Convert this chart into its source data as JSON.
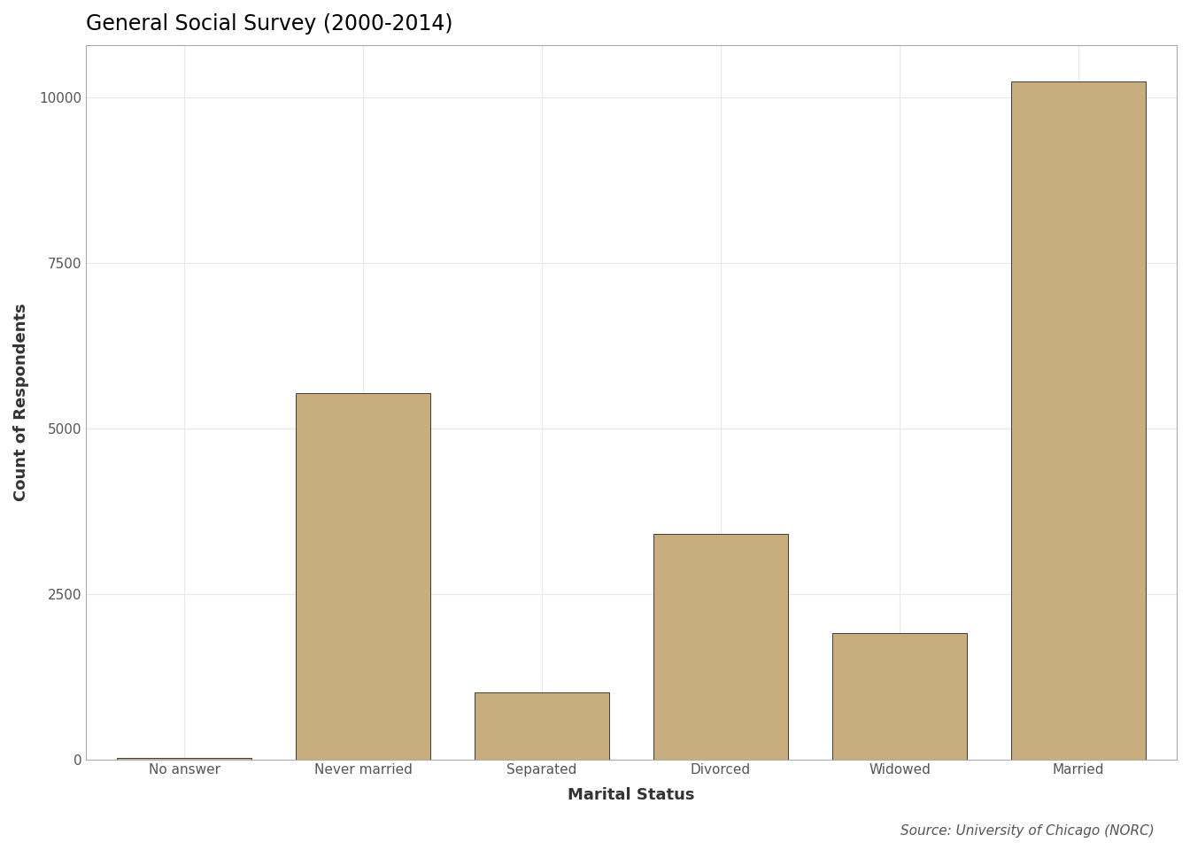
{
  "categories": [
    "No answer",
    "Never married",
    "Separated",
    "Divorced",
    "Widowed",
    "Married"
  ],
  "values": [
    17,
    5534,
    1010,
    3407,
    1912,
    10253
  ],
  "bar_color": "#C8AD7F",
  "bar_edge_color": "#000000",
  "bar_edge_width": 0.5,
  "title": "General Social Survey (2000-2014)",
  "xlabel": "Marital Status",
  "ylabel": "Count of Respondents",
  "caption": "Source: University of Chicago (NORC)",
  "ylim": [
    0,
    10800
  ],
  "yticks": [
    0,
    2500,
    5000,
    7500,
    10000
  ],
  "title_fontsize": 17,
  "axis_label_fontsize": 13,
  "tick_fontsize": 11,
  "caption_fontsize": 11,
  "plot_bg_color": "#FFFFFF",
  "fig_bg_color": "#FFFFFF",
  "grid_color": "#E8E8E8",
  "grid_linewidth": 0.8,
  "bar_width": 0.75,
  "spine_color": "#AAAAAA",
  "spine_linewidth": 0.8,
  "tick_color": "#555555",
  "label_color": "#333333",
  "title_color": "#000000",
  "caption_color": "#555555"
}
